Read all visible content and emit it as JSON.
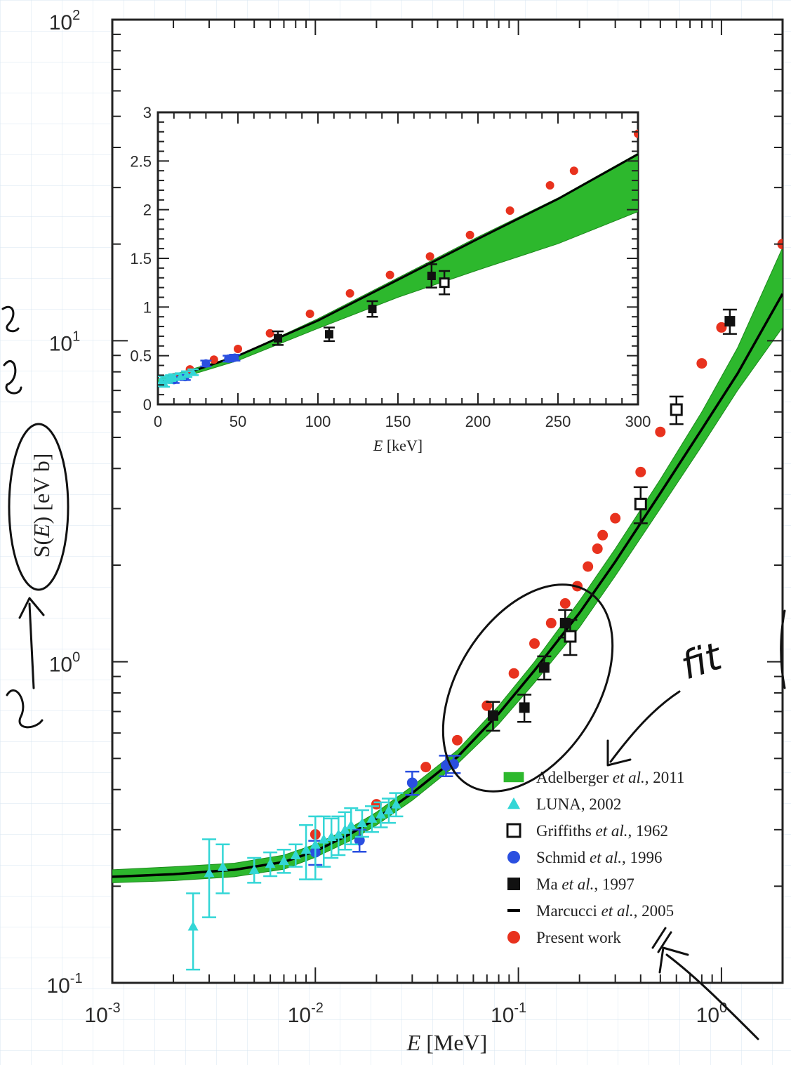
{
  "chart_data": [
    {
      "type": "scatter",
      "title": "",
      "xlabel_symbol": "E",
      "xlabel_unit": " [MeV]",
      "ylabel_prefix": "S(",
      "ylabel_symbol": "E",
      "ylabel_suffix": ") [eV b]",
      "x_scale": "log",
      "y_scale": "log",
      "xlim": [
        0.001,
        2
      ],
      "ylim": [
        0.1,
        100
      ],
      "x_ticks": [
        {
          "value": 0.001,
          "mantissa": "10",
          "exp": "-3"
        },
        {
          "value": 0.01,
          "mantissa": "10",
          "exp": "-2"
        },
        {
          "value": 0.1,
          "mantissa": "10",
          "exp": "-1"
        },
        {
          "value": 1,
          "mantissa": "10",
          "exp": "0"
        }
      ],
      "y_ticks": [
        {
          "value": 0.1,
          "mantissa": "10",
          "exp": "-1"
        },
        {
          "value": 1,
          "mantissa": "10",
          "exp": "0"
        },
        {
          "value": 10,
          "mantissa": "10",
          "exp": "1"
        },
        {
          "value": 100,
          "mantissa": "10",
          "exp": "2"
        }
      ],
      "legend_placement": "lower-right",
      "legend": [
        {
          "key": "adelberger",
          "symbol": "band",
          "name_before": "Adelberger ",
          "name_italic": "et al.",
          "name_after": ", 2011"
        },
        {
          "key": "luna",
          "symbol": "triangle",
          "name_before": "LUNA, 2002",
          "name_italic": "",
          "name_after": ""
        },
        {
          "key": "griffiths",
          "symbol": "open-square",
          "name_before": "Griffiths ",
          "name_italic": "et al.",
          "name_after": ", 1962"
        },
        {
          "key": "schmid",
          "symbol": "circle",
          "name_before": "Schmid ",
          "name_italic": "et al.",
          "name_after": ", 1996"
        },
        {
          "key": "ma",
          "symbol": "filled-square",
          "name_before": "Ma ",
          "name_italic": "et al.",
          "name_after": ", 1997"
        },
        {
          "key": "marcucci",
          "symbol": "dash",
          "name_before": "Marcucci ",
          "name_italic": "et al.",
          "name_after": ", 2005"
        },
        {
          "key": "present",
          "symbol": "circle",
          "name_before": "Present work",
          "name_italic": "",
          "name_after": ""
        }
      ],
      "colors": {
        "band": "#2db82d",
        "band_dark": "#1d8a1d",
        "luna": "#33d6d6",
        "schmid": "#2a4fe0",
        "present": "#e8321e",
        "ma": "#111111",
        "griffiths": "#111111",
        "line": "#000000"
      },
      "band": {
        "x": [
          0.001,
          0.002,
          0.004,
          0.007,
          0.01,
          0.015,
          0.02,
          0.03,
          0.05,
          0.08,
          0.12,
          0.2,
          0.3,
          0.5,
          0.8,
          1.2,
          2
        ],
        "lower": [
          0.205,
          0.208,
          0.214,
          0.226,
          0.246,
          0.278,
          0.31,
          0.37,
          0.48,
          0.64,
          0.86,
          1.28,
          1.85,
          3.0,
          4.7,
          7.0,
          11.0
        ],
        "upper": [
          0.225,
          0.23,
          0.236,
          0.25,
          0.27,
          0.305,
          0.34,
          0.41,
          0.53,
          0.73,
          1.0,
          1.55,
          2.25,
          3.7,
          6.0,
          9.5,
          19.5
        ]
      },
      "fit_line": {
        "x": [
          0.001,
          0.002,
          0.004,
          0.007,
          0.01,
          0.015,
          0.02,
          0.03,
          0.05,
          0.08,
          0.12,
          0.2,
          0.3,
          0.5,
          0.8,
          1.2,
          2
        ],
        "y": [
          0.214,
          0.218,
          0.225,
          0.238,
          0.257,
          0.292,
          0.325,
          0.39,
          0.505,
          0.69,
          0.94,
          1.42,
          2.05,
          3.35,
          5.3,
          7.9,
          14.0
        ]
      },
      "series": [
        {
          "key": "present",
          "marker": "circle",
          "x": [
            0.01,
            0.02,
            0.035,
            0.05,
            0.07,
            0.095,
            0.12,
            0.145,
            0.17,
            0.195,
            0.22,
            0.245,
            0.26,
            0.3,
            0.4,
            0.5,
            0.8,
            1.0,
            2.0
          ],
          "y": [
            0.29,
            0.36,
            0.47,
            0.57,
            0.73,
            0.92,
            1.14,
            1.32,
            1.52,
            1.72,
            1.98,
            2.25,
            2.48,
            2.8,
            3.9,
            5.2,
            8.5,
            11.0,
            20.0
          ]
        },
        {
          "key": "schmid",
          "marker": "circle",
          "x": [
            0.01,
            0.0165,
            0.03,
            0.044,
            0.048
          ],
          "y": [
            0.255,
            0.278,
            0.42,
            0.475,
            0.48
          ],
          "yerr": [
            0.022,
            0.022,
            0.035,
            0.035,
            0.03
          ]
        },
        {
          "key": "ma",
          "marker": "filled-square",
          "x": [
            0.075,
            0.107,
            0.134,
            0.17,
            1.1
          ],
          "y": [
            0.68,
            0.72,
            0.96,
            1.32,
            11.5
          ],
          "yerr": [
            0.07,
            0.07,
            0.08,
            0.13,
            1.0
          ]
        },
        {
          "key": "griffiths",
          "marker": "open-square",
          "x": [
            0.18,
            0.4,
            0.6
          ],
          "y": [
            1.2,
            3.1,
            6.1
          ],
          "yerr": [
            0.15,
            0.4,
            0.6
          ]
        },
        {
          "key": "luna",
          "marker": "triangle",
          "x": [
            0.0025,
            0.003,
            0.0035,
            0.005,
            0.006,
            0.007,
            0.008,
            0.009,
            0.01,
            0.011,
            0.012,
            0.013,
            0.014,
            0.015,
            0.017,
            0.019,
            0.021,
            0.023,
            0.025
          ],
          "y": [
            0.15,
            0.22,
            0.23,
            0.225,
            0.235,
            0.24,
            0.25,
            0.26,
            0.27,
            0.28,
            0.285,
            0.29,
            0.3,
            0.31,
            0.315,
            0.325,
            0.335,
            0.345,
            0.36
          ],
          "yerr": [
            0.04,
            0.06,
            0.04,
            0.02,
            0.02,
            0.02,
            0.02,
            0.05,
            0.06,
            0.05,
            0.04,
            0.04,
            0.04,
            0.04,
            0.03,
            0.03,
            0.03,
            0.03,
            0.03
          ]
        }
      ]
    },
    {
      "type": "scatter",
      "title": "",
      "xlabel_symbol": "E",
      "xlabel_unit": " [keV]",
      "ylabel": "",
      "xlim": [
        0,
        300
      ],
      "ylim": [
        0,
        3
      ],
      "x_ticks": [
        0,
        50,
        100,
        150,
        200,
        250,
        300
      ],
      "y_tick_values": [
        0,
        0.5,
        1,
        1.5,
        2,
        2.5,
        3
      ],
      "y_tick_labels": [
        "0",
        "0.5",
        "1",
        "1.5",
        "2",
        "2.5",
        "3"
      ],
      "band": {
        "x": [
          0,
          50,
          100,
          150,
          200,
          250,
          300
        ],
        "lower": [
          0.2,
          0.45,
          0.78,
          1.1,
          1.38,
          1.65,
          1.98
        ],
        "upper": [
          0.26,
          0.5,
          0.88,
          1.3,
          1.72,
          2.12,
          2.58
        ]
      },
      "fit_line": {
        "x": [
          0,
          50,
          100,
          150,
          200,
          250,
          300
        ],
        "y": [
          0.22,
          0.5,
          0.86,
          1.28,
          1.7,
          2.11,
          2.57
        ]
      },
      "series": [
        {
          "key": "present",
          "marker": "circle",
          "x": [
            10,
            20,
            35,
            50,
            70,
            95,
            120,
            145,
            170,
            195,
            220,
            245,
            260,
            300
          ],
          "y": [
            0.28,
            0.36,
            0.46,
            0.57,
            0.73,
            0.93,
            1.14,
            1.33,
            1.52,
            1.74,
            1.99,
            2.25,
            2.4,
            2.78
          ]
        },
        {
          "key": "schmid",
          "marker": "circle",
          "x": [
            10,
            17,
            30,
            44,
            48
          ],
          "y": [
            0.25,
            0.28,
            0.42,
            0.47,
            0.48
          ],
          "yerr": [
            0.03,
            0.03,
            0.03,
            0.03,
            0.03
          ]
        },
        {
          "key": "ma",
          "marker": "filled-square",
          "x": [
            75,
            107,
            134,
            171
          ],
          "y": [
            0.68,
            0.72,
            0.98,
            1.32
          ],
          "yerr": [
            0.07,
            0.07,
            0.08,
            0.12
          ]
        },
        {
          "key": "griffiths",
          "marker": "open-square",
          "x": [
            179
          ],
          "y": [
            1.25
          ],
          "yerr": [
            0.12
          ]
        },
        {
          "key": "luna",
          "marker": "triangle",
          "x": [
            2,
            4,
            6,
            8,
            10,
            14,
            18,
            22
          ],
          "y": [
            0.24,
            0.22,
            0.25,
            0.27,
            0.28,
            0.29,
            0.31,
            0.33
          ],
          "yerr": [
            0.05,
            0.04,
            0.03,
            0.03,
            0.03,
            0.03,
            0.03,
            0.03
          ]
        }
      ]
    }
  ],
  "annotations": {
    "fit_label": "fit"
  }
}
